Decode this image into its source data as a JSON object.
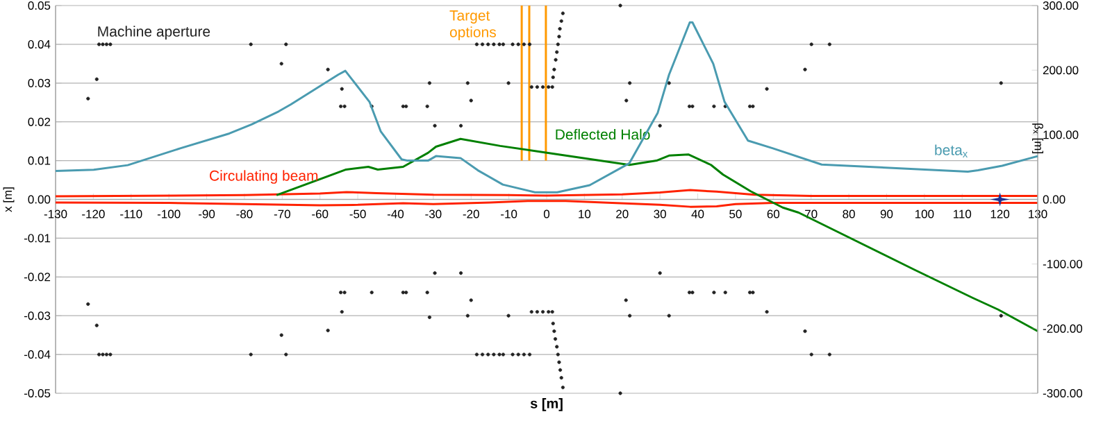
{
  "chart_data": {
    "type": "line",
    "xlabel": "s [m]",
    "ylabel": "x [m]",
    "y2label": "β$_{x}$ [m]",
    "xlim": [
      -130,
      130
    ],
    "xticks": [
      -130,
      -120,
      -110,
      -100,
      -90,
      -80,
      -70,
      -60,
      -50,
      -40,
      -30,
      -20,
      -10,
      0,
      10,
      20,
      30,
      40,
      50,
      60,
      70,
      80,
      90,
      100,
      110,
      120,
      130
    ],
    "ylim": [
      -0.05,
      0.05
    ],
    "yticks": [
      -0.05,
      -0.04,
      -0.03,
      -0.02,
      -0.01,
      {
        "value": 0,
        "label": "0.00"
      },
      0.01,
      0.02,
      0.03,
      0.04,
      0.05
    ],
    "y2lim": [
      -300,
      300
    ],
    "y2ticks": [
      {
        "value": -300,
        "label": "-300.00"
      },
      {
        "value": -200,
        "label": "-200.00"
      },
      {
        "value": -100,
        "label": "-100.00"
      },
      {
        "value": 0,
        "label": "0.00"
      },
      {
        "value": 100,
        "label": "100.00"
      },
      {
        "value": 200,
        "label": "200.00"
      },
      {
        "value": 300,
        "label": "300.00"
      }
    ],
    "grid": "y",
    "series": [
      {
        "name": "Machine aperture",
        "type": "scatter",
        "marker": "circle",
        "color": "#222222",
        "x": [
          -121.4,
          -119.1,
          -118.5,
          -117.5,
          -116.5,
          -115.5,
          -78.3,
          -70.2,
          -69,
          -57.9,
          -54.2,
          -54.5,
          -53.5,
          -46.3,
          -38,
          -37.2,
          -31.6,
          -31,
          -29.6,
          -22.7,
          -20.9,
          -20,
          -18.5,
          -17,
          -15.5,
          -14,
          -12.5,
          -11.5,
          -10.1,
          -9,
          -7.5,
          -6,
          -4.5,
          -4,
          -2.5,
          -1,
          0.5,
          1.5,
          1.7,
          2,
          2.4,
          2.7,
          3,
          3.3,
          3.5,
          3.9,
          4.3,
          19.5,
          21.1,
          22,
          30,
          32.4,
          37.8,
          38.6,
          44.3,
          47.3,
          53.8,
          54.6,
          58.3,
          68.4,
          70.1,
          74.9,
          120.3,
          -121.4,
          -119.1,
          -118.5,
          -117.5,
          -116.5,
          -115.5,
          -78.3,
          -70.2,
          -69,
          -57.9,
          -54.2,
          -54.5,
          -53.5,
          -46.3,
          -38,
          -37.2,
          -31.6,
          -31,
          -29.6,
          -22.7,
          -20.9,
          -20,
          -18.5,
          -17,
          -15.5,
          -14,
          -12.5,
          -11.5,
          -10.1,
          -9,
          -7.5,
          -6,
          -4.5,
          -4,
          -2.5,
          -1,
          0.5,
          1.5,
          1.7,
          2,
          2.3,
          2.7,
          3,
          3.3,
          3.6,
          3.9,
          4.3,
          19.5,
          21,
          22,
          30,
          32.4,
          37.8,
          38.6,
          44.3,
          47.3,
          53.8,
          54.6,
          58.3,
          68.4,
          70.1,
          74.9,
          120.3
        ],
        "values": [
          0.026,
          0.031,
          0.04,
          0.04,
          0.04,
          0.04,
          0.04,
          0.035,
          0.04,
          0.0335,
          0.0285,
          0.024,
          0.024,
          0.024,
          0.024,
          0.024,
          0.024,
          0.03,
          0.019,
          0.019,
          0.03,
          0.0255,
          0.04,
          0.04,
          0.04,
          0.04,
          0.04,
          0.04,
          0.03,
          0.04,
          0.04,
          0.04,
          0.04,
          0.029,
          0.029,
          0.029,
          0.029,
          0.029,
          0.0315,
          0.0335,
          0.036,
          0.038,
          0.04,
          0.042,
          0.044,
          0.046,
          0.048,
          0.05,
          0.0255,
          0.03,
          0.019,
          0.03,
          0.024,
          0.024,
          0.024,
          0.024,
          0.024,
          0.024,
          0.0285,
          0.0335,
          0.04,
          0.04,
          0.03,
          -0.027,
          -0.0325,
          -0.04,
          -0.04,
          -0.04,
          -0.04,
          -0.04,
          -0.035,
          -0.04,
          -0.0338,
          -0.029,
          -0.024,
          -0.024,
          -0.024,
          -0.024,
          -0.024,
          -0.024,
          -0.0304,
          -0.019,
          -0.019,
          -0.03,
          -0.026,
          -0.04,
          -0.04,
          -0.04,
          -0.04,
          -0.04,
          -0.04,
          -0.03,
          -0.04,
          -0.04,
          -0.04,
          -0.04,
          -0.029,
          -0.029,
          -0.029,
          -0.029,
          -0.029,
          -0.032,
          -0.034,
          -0.036,
          -0.038,
          -0.04,
          -0.042,
          -0.044,
          -0.046,
          -0.0485,
          -0.05,
          -0.026,
          -0.03,
          -0.019,
          -0.03,
          -0.024,
          -0.024,
          -0.024,
          -0.024,
          -0.024,
          -0.024,
          -0.029,
          -0.034,
          -0.04,
          -0.04,
          -0.03
        ]
      },
      {
        "name": "Target options",
        "color": "#ff9900",
        "x": [
          -6.6,
          -6.6
        ],
        "values": [
          0.01,
          0.05
        ]
      },
      {
        "color": "#ff9900",
        "x": [
          -4.6,
          -4.6
        ],
        "values": [
          0.01,
          0.05
        ]
      },
      {
        "color": "#ff9900",
        "x": [
          -0.2,
          -0.2
        ],
        "values": [
          0.01,
          0.05
        ]
      },
      {
        "name": "Circulating beam",
        "color": "#ff2200",
        "x": [
          -130,
          -80,
          -60,
          -53,
          -45,
          -30,
          -10,
          0,
          20,
          30,
          38,
          45,
          55,
          70,
          130
        ],
        "values": [
          0.0008,
          0.0011,
          0.0015,
          0.0019,
          0.0016,
          0.0012,
          0.0011,
          0.001,
          0.0013,
          0.0018,
          0.0024,
          0.002,
          0.0012,
          0.0009,
          0.0009
        ]
      },
      {
        "color": "#ff2200",
        "x": [
          -130,
          -100,
          -80,
          -60,
          -50,
          -38,
          -30,
          -15,
          -5,
          5,
          15,
          30,
          38,
          45,
          50,
          60,
          130
        ],
        "values": [
          -0.0008,
          -0.0009,
          -0.0012,
          -0.0015,
          -0.0014,
          -0.001,
          -0.0012,
          -0.0008,
          -0.0004,
          -0.0004,
          -0.0008,
          -0.0014,
          -0.0019,
          -0.0018,
          -0.0012,
          -0.0009,
          -0.0009
        ]
      },
      {
        "name": "Deflected Halo",
        "color": "#008000",
        "x": [
          -71.5,
          -53.1,
          -47.2,
          -44.7,
          -38,
          -31.4,
          -29.3,
          -22.8,
          -12.3,
          -1.8,
          21.9,
          29.1,
          32.4,
          37.5,
          43.5,
          46.7,
          54,
          62.5,
          66.7,
          97.5,
          112.8,
          119.5,
          130
        ],
        "values": [
          0.0011,
          0.0077,
          0.0084,
          0.0077,
          0.0084,
          0.012,
          0.0136,
          0.0156,
          0.0138,
          0.0123,
          0.0089,
          0.01,
          0.0113,
          0.0116,
          0.0089,
          0.0064,
          0.0021,
          -0.0021,
          -0.0034,
          -0.0182,
          -0.0254,
          -0.0284,
          -0.034
        ]
      },
      {
        "name": "beta$_{x}$",
        "axis": "y2",
        "color": "#4a9bb0",
        "x": [
          -130,
          -119.9,
          -110.9,
          -97,
          -84,
          -78.1,
          -71,
          -67.7,
          -55.2,
          -53.3,
          -46.9,
          -43.9,
          -38.4,
          -36.8,
          -31.4,
          -29.3,
          -22.8,
          -18.2,
          -11.6,
          -3.1,
          2.8,
          11.4,
          21.9,
          29.4,
          32.4,
          37.9,
          38.6,
          44.1,
          47.1,
          53.3,
          59.9,
          72.8,
          111.5,
          114.2,
          120.6,
          130
        ],
        "values": [
          44,
          46,
          53,
          79,
          102,
          116,
          136,
          147,
          193,
          199,
          151,
          105,
          62,
          60,
          60,
          67,
          64,
          45,
          23,
          11,
          11,
          22,
          56,
          134,
          193,
          274,
          274,
          210,
          151,
          91,
          79,
          54,
          43,
          45,
          52,
          67
        ]
      },
      {
        "type": "scatter",
        "marker": "star",
        "color": "#1f2f8f",
        "x": [
          120
        ],
        "values": [
          0
        ]
      }
    ]
  }
}
